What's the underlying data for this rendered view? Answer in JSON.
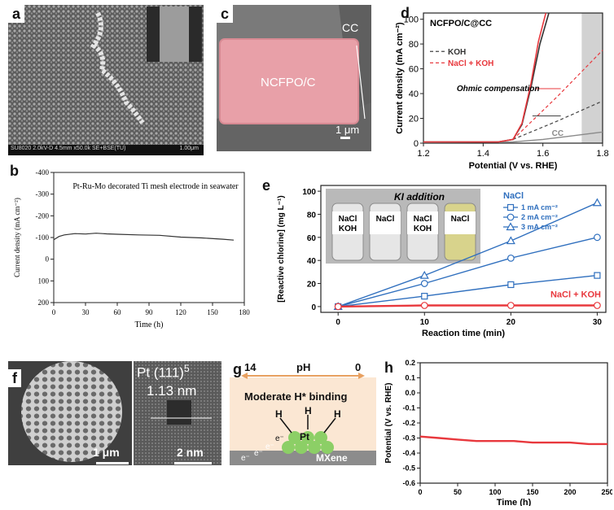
{
  "panels": {
    "a": {
      "label": "a",
      "caption": "SU8020 2.0kV-D 4.5mm x50.0k SE+BSE(TU)",
      "scale": "1.00μm"
    },
    "b": {
      "label": "b",
      "title": "Pt-Ru-Mo decorated Ti mesh electrode in seawater",
      "xlabel": "Time (h)",
      "ylabel": "Current density (mA cm⁻²)",
      "xticks": [
        "0",
        "30",
        "60",
        "90",
        "120",
        "150",
        "180"
      ],
      "yticks": [
        "-400",
        "-300",
        "-200",
        "-100",
        "0",
        "100",
        "200"
      ]
    },
    "c": {
      "label": "c",
      "material": "NCFPO/C",
      "substrate": "CC",
      "scale": "1 μm"
    },
    "d": {
      "label": "d",
      "title": "NCFPO/C@CC",
      "legend": [
        "KOH",
        "NaCl + KOH"
      ],
      "annotation": "Ohmic compensation",
      "cc_label": "CC",
      "xlabel": "Potential (V vs. RHE)",
      "ylabel": "Current density (mA cm⁻²)",
      "xticks": [
        "1.2",
        "1.4",
        "1.6",
        "1.8"
      ],
      "yticks": [
        "0",
        "20",
        "40",
        "60",
        "80",
        "100"
      ]
    },
    "e": {
      "label": "e",
      "inset_title": "KI addition",
      "vials": [
        "NaCl KOH",
        "NaCl",
        "NaCl KOH",
        "NaCl"
      ],
      "legend_title": "NaCl",
      "legend": [
        "1 mA cm⁻²",
        "2 mA cm⁻²",
        "3 mA cm⁻²"
      ],
      "series_label": "NaCl + KOH",
      "xlabel": "Reaction time (min)",
      "ylabel": "[Reactive chlorine] (mg L⁻¹)",
      "xticks": [
        "0",
        "10",
        "20",
        "30"
      ],
      "yticks": [
        "0",
        "20",
        "40",
        "60",
        "80",
        "100"
      ]
    },
    "f": {
      "label": "f",
      "hrtem_label": "Pt (111)",
      "hrtem_count": "5",
      "d_spacing": "1.13 nm",
      "scale_left": "1 μm",
      "scale_right": "2 nm"
    },
    "g": {
      "label": "g",
      "ph_left": "14",
      "ph_center": "pH",
      "ph_right": "0",
      "heading": "Moderate H* binding",
      "metal": "Pt",
      "support": "MXene",
      "h_atoms": [
        "H",
        "H",
        "H"
      ],
      "electrons": [
        "e⁻",
        "e⁻",
        "e⁻",
        "e⁻"
      ]
    },
    "h": {
      "label": "h",
      "xlabel": "Time (h)",
      "ylabel": "Potential (V vs. RHE)",
      "xticks": [
        "0",
        "50",
        "100",
        "150",
        "200",
        "250"
      ],
      "yticks": [
        "0.2",
        "0.1",
        "0.0",
        "-0.1",
        "-0.2",
        "-0.3",
        "-0.4",
        "-0.5",
        "-0.6"
      ]
    }
  },
  "colors": {
    "red": "#e8383d",
    "blue": "#2f6fbe",
    "gray": "#8a8a8a",
    "pink": "#e8a0a8"
  },
  "chart_data": [
    {
      "type": "line",
      "panel": "b",
      "xlim": [
        0,
        180
      ],
      "ylim": [
        200,
        -400
      ],
      "series": [
        {
          "x": [
            0,
            5,
            10,
            20,
            30,
            40,
            50,
            60,
            80,
            100,
            120,
            140,
            160,
            170
          ],
          "y": [
            -90,
            -105,
            -112,
            -118,
            -116,
            -120,
            -117,
            -115,
            -112,
            -110,
            -102,
            -98,
            -92,
            -88
          ]
        }
      ]
    },
    {
      "type": "line",
      "panel": "d",
      "xlim": [
        1.2,
        1.8
      ],
      "ylim": [
        0,
        105
      ],
      "series": [
        {
          "name": "KOH",
          "x": [
            1.2,
            1.45,
            1.5,
            1.53,
            1.56,
            1.59,
            1.62
          ],
          "y": [
            1,
            1,
            3,
            15,
            45,
            80,
            105
          ]
        },
        {
          "name": "NaCl + KOH",
          "x": [
            1.2,
            1.45,
            1.5,
            1.53,
            1.56,
            1.585,
            1.61
          ],
          "y": [
            1,
            1,
            3,
            16,
            48,
            82,
            105
          ]
        },
        {
          "x": [
            1.2,
            1.5,
            1.6,
            1.7,
            1.8
          ],
          "y": [
            0.5,
            1,
            3,
            6,
            9
          ]
        },
        {
          "x": [
            1.5,
            1.65,
            1.8
          ],
          "y": [
            3,
            18,
            34
          ]
        },
        {
          "x": [
            1.5,
            1.65,
            1.8
          ],
          "y": [
            3,
            38,
            75
          ]
        }
      ]
    },
    {
      "type": "line",
      "panel": "e",
      "categories": [
        0,
        10,
        20,
        30
      ],
      "xlim": [
        0,
        30
      ],
      "ylim": [
        0,
        100
      ],
      "series": [
        {
          "name": "1 mA cm⁻²",
          "values": [
            0,
            9,
            19,
            27
          ]
        },
        {
          "name": "2 mA cm⁻²",
          "values": [
            0,
            20,
            42,
            60
          ]
        },
        {
          "name": "3 mA cm⁻²",
          "values": [
            0,
            27,
            57,
            90
          ]
        },
        {
          "name": "NaCl + KOH",
          "values": [
            0,
            1,
            1,
            1
          ]
        }
      ]
    },
    {
      "type": "line",
      "panel": "h",
      "xlim": [
        0,
        250
      ],
      "ylim": [
        -0.6,
        0.2
      ],
      "series": [
        {
          "x": [
            0,
            25,
            50,
            75,
            100,
            125,
            150,
            175,
            200,
            225,
            250
          ],
          "y": [
            -0.29,
            -0.3,
            -0.31,
            -0.32,
            -0.32,
            -0.32,
            -0.33,
            -0.33,
            -0.33,
            -0.34,
            -0.34
          ]
        }
      ]
    }
  ]
}
